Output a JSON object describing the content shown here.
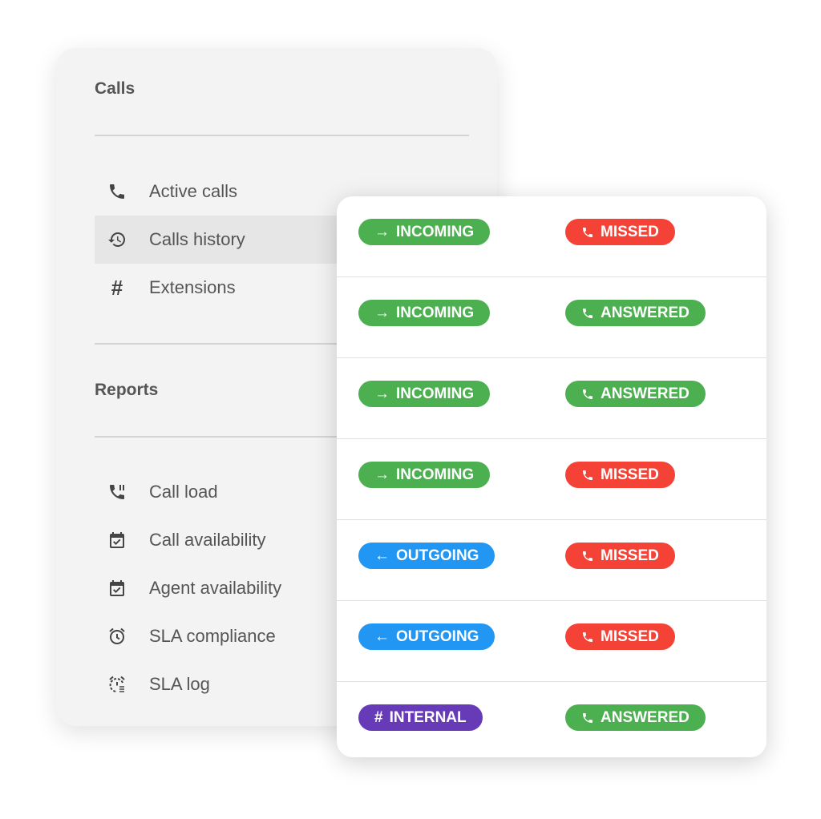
{
  "sidebar": {
    "calls_title": "Calls",
    "calls_items": [
      {
        "label": "Active calls",
        "icon": "phone-icon"
      },
      {
        "label": "Calls history",
        "icon": "history-icon",
        "active": true
      },
      {
        "label": "Extensions",
        "icon": "hash-icon"
      }
    ],
    "reports_title": "Reports",
    "reports_items": [
      {
        "label": "Call load",
        "icon": "phone-load-icon"
      },
      {
        "label": "Call availability",
        "icon": "calendar-check-icon"
      },
      {
        "label": "Agent availability",
        "icon": "calendar-check-icon"
      },
      {
        "label": "SLA compliance",
        "icon": "alarm-icon"
      },
      {
        "label": "SLA log",
        "icon": "alarm-log-icon"
      }
    ]
  },
  "colors": {
    "green": "#4caf50",
    "red": "#f44336",
    "blue": "#2196f3",
    "purple": "#673ab7"
  },
  "calls": [
    {
      "direction": "INCOMING",
      "status": "MISSED"
    },
    {
      "direction": "INCOMING",
      "status": "ANSWERED"
    },
    {
      "direction": "INCOMING",
      "status": "ANSWERED"
    },
    {
      "direction": "INCOMING",
      "status": "MISSED"
    },
    {
      "direction": "OUTGOING",
      "status": "MISSED"
    },
    {
      "direction": "OUTGOING",
      "status": "MISSED"
    },
    {
      "direction": "INTERNAL",
      "status": "ANSWERED"
    }
  ]
}
